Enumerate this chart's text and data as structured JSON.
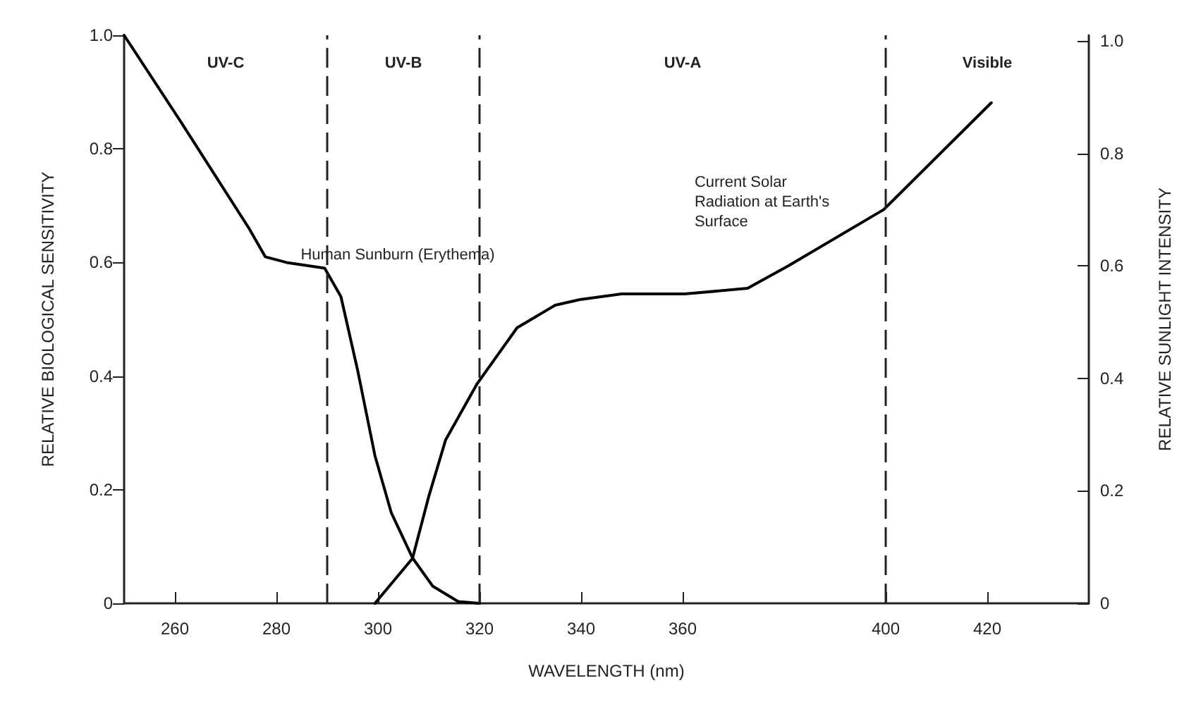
{
  "chart_data": {
    "type": "line",
    "xlabel": "WAVELENGTH (nm)",
    "ylabel": "RELATIVE BIOLOGICAL SENSITIVITY",
    "y2label": "RELATIVE SUNLIGHT INTENSITY",
    "xlim": [
      250,
      440
    ],
    "xticks": [
      260,
      280,
      300,
      320,
      340,
      360,
      400,
      420
    ],
    "ylim": [
      0,
      1
    ],
    "yticks": [
      0,
      0.2,
      0.4,
      0.6,
      0.8,
      {
        "value": 1,
        "label": "1.0"
      }
    ],
    "y2lim": [
      0,
      1.01
    ],
    "y2ticks": [
      0,
      0.2,
      0.4,
      0.6,
      0.8,
      {
        "value": 1,
        "label": "1.0"
      }
    ],
    "grid": false,
    "legend": false,
    "marker": "none",
    "line_style": "solid",
    "series": [
      {
        "name": "Human Sunburn (Erythema)",
        "color": "#000000",
        "x": [
          250,
          261,
          274.6,
          277.8,
          282,
          289.5,
          292.7,
          296,
          299.4,
          302.6,
          306.8,
          310.8,
          315.8,
          320
        ],
        "values": [
          1.0,
          0.85,
          0.66,
          0.61,
          0.6,
          0.59,
          0.54,
          0.41,
          0.26,
          0.16,
          0.08,
          0.03,
          0.003,
          0
        ]
      },
      {
        "name": "Current Solar Radiation at Earth's Surface",
        "color": "#000000",
        "axis": "y2",
        "x": [
          299.4,
          306.8,
          310,
          313.3,
          319.5,
          327.4,
          334.9,
          339.8,
          348,
          360.4,
          372.8,
          380.8,
          399.6,
          420.8
        ],
        "values": [
          0,
          0.08,
          0.19,
          0.29,
          0.39,
          0.49,
          0.53,
          0.54,
          0.55,
          0.55,
          0.56,
          0.6,
          0.7,
          0.89
        ]
      }
    ],
    "ref_lines": [
      {
        "axis": "x",
        "value": 290,
        "line_style": "dashed"
      },
      {
        "axis": "x",
        "value": 320,
        "line_style": "dashed"
      },
      {
        "axis": "x",
        "value": 400,
        "line_style": "dashed"
      }
    ],
    "annotations": [
      "UV-C",
      "UV-B",
      "UV-A",
      "Visible"
    ]
  }
}
